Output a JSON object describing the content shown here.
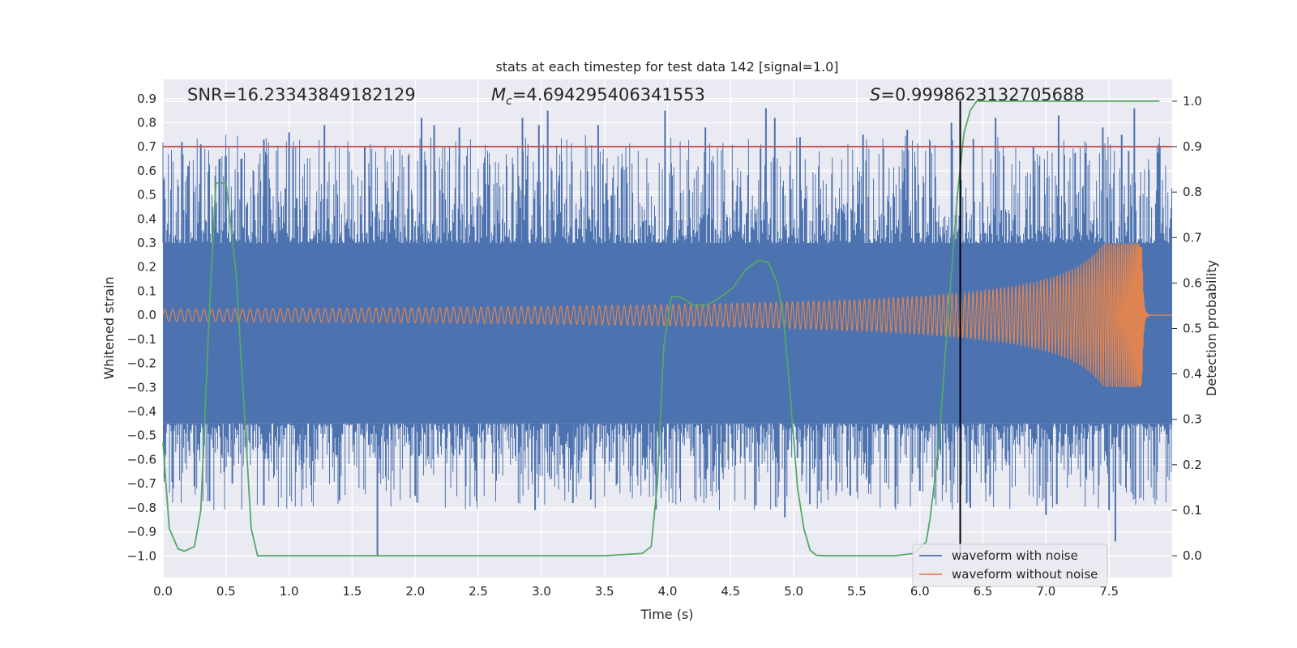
{
  "chart_data": {
    "type": "line",
    "title": "stats at each timestep for test data 142 [signal=1.0]",
    "xlabel": "Time (s)",
    "ylabel": "Whitened strain",
    "y2label": "Detection probability",
    "xlim": [
      0.0,
      8.0
    ],
    "ylim": [
      -1.09,
      0.98
    ],
    "y2lim": [
      -0.048,
      1.048
    ],
    "grid": true,
    "legend_position": "lower-right",
    "x_ticks": [
      "0.0",
      "0.5",
      "1.0",
      "1.5",
      "2.0",
      "2.5",
      "3.0",
      "3.5",
      "4.0",
      "4.5",
      "5.0",
      "5.5",
      "6.0",
      "6.5",
      "7.0",
      "7.5"
    ],
    "y_ticks": [
      "0.9",
      "0.8",
      "0.7",
      "0.6",
      "0.5",
      "0.4",
      "0.3",
      "0.2",
      "0.1",
      "0.0",
      "−0.1",
      "−0.2",
      "−0.3",
      "−0.4",
      "−0.5",
      "−0.6",
      "−0.7",
      "−0.8",
      "−0.9",
      "−1.0"
    ],
    "y2_ticks": [
      "1.0",
      "0.9",
      "0.8",
      "0.7",
      "0.6",
      "0.5",
      "0.4",
      "0.3",
      "0.2",
      "0.1",
      "0.0"
    ],
    "annotations": {
      "snr": "SNR=16.23343849182129",
      "mc_symbol": "M",
      "mc_sub": "c",
      "mc_value": "=4.694295406341553",
      "s_symbol": "S",
      "s_value": "=0.9998623132705688"
    },
    "threshold_probability": 0.9,
    "marker_time": 6.32,
    "series": [
      {
        "name": "waveform with noise",
        "color": "#4c72b0",
        "envelope_band": [
          -0.45,
          0.3
        ],
        "peaks_x": [
          0.15,
          0.2,
          0.3,
          0.45,
          0.5,
          0.62,
          0.8,
          1.0,
          1.28,
          1.6,
          2.05,
          2.15,
          2.35,
          2.85,
          2.98,
          3.05,
          3.45,
          3.98,
          4.3,
          4.78,
          4.85,
          5.05,
          5.55,
          5.9,
          6.25,
          6.6,
          6.9,
          7.1,
          7.45,
          7.6,
          7.7
        ],
        "peaks_y": [
          0.72,
          0.62,
          0.71,
          0.65,
          0.66,
          0.65,
          0.73,
          0.76,
          0.79,
          0.7,
          0.82,
          0.79,
          0.78,
          0.82,
          0.79,
          0.85,
          0.79,
          0.85,
          0.78,
          0.86,
          0.82,
          0.74,
          0.75,
          0.77,
          0.8,
          0.82,
          0.7,
          0.83,
          0.78,
          0.75,
          0.86
        ],
        "troughs_x": [
          0.08,
          0.25,
          0.4,
          0.55,
          0.8,
          1.1,
          1.4,
          1.7,
          2.0,
          2.4,
          2.95,
          3.25,
          3.6,
          4.1,
          4.3,
          4.7,
          4.93,
          5.2,
          5.6,
          6.0,
          6.4,
          7.0,
          7.5,
          7.55
        ],
        "troughs_y": [
          -0.72,
          -0.71,
          -0.55,
          -0.7,
          -0.79,
          -0.64,
          -0.77,
          -1.0,
          -0.75,
          -0.71,
          -0.81,
          -0.78,
          -0.7,
          -0.72,
          -0.68,
          -0.79,
          -0.84,
          -0.73,
          -0.7,
          -0.73,
          -0.8,
          -0.83,
          -0.81,
          -0.94
        ]
      },
      {
        "name": "waveform without noise",
        "color": "#dd8452",
        "chirp_start_amplitude": 0.025,
        "chirp_peak_amplitude": 0.3,
        "chirp_peak_time": 7.76,
        "chirp_start_freq_hz": 16
      },
      {
        "name": "",
        "color": "#55a868",
        "axis": "right",
        "x": [
          0.0,
          0.05,
          0.12,
          0.17,
          0.25,
          0.3,
          0.37,
          0.42,
          0.45,
          0.5,
          0.58,
          0.7,
          0.75,
          0.8,
          1.0,
          2.0,
          3.0,
          3.5,
          3.8,
          3.87,
          3.92,
          3.97,
          4.03,
          4.08,
          4.13,
          4.18,
          4.22,
          4.3,
          4.4,
          4.52,
          4.62,
          4.72,
          4.8,
          4.87,
          4.92,
          4.97,
          5.03,
          5.08,
          5.13,
          5.18,
          5.25,
          5.5,
          5.8,
          5.95,
          6.05,
          6.08,
          6.15,
          6.2,
          6.25,
          6.3,
          6.35,
          6.4,
          6.45,
          6.5,
          7.0,
          7.5,
          7.9
        ],
        "y": [
          0.25,
          0.06,
          0.015,
          0.01,
          0.02,
          0.1,
          0.55,
          0.82,
          0.82,
          0.82,
          0.62,
          0.06,
          0.0,
          0.0,
          0.0,
          0.0,
          0.0,
          0.0,
          0.005,
          0.02,
          0.16,
          0.46,
          0.57,
          0.57,
          0.565,
          0.555,
          0.55,
          0.55,
          0.565,
          0.59,
          0.63,
          0.65,
          0.645,
          0.6,
          0.52,
          0.36,
          0.15,
          0.06,
          0.012,
          0.001,
          0.0,
          0.0,
          0.0,
          0.005,
          0.03,
          0.08,
          0.24,
          0.44,
          0.62,
          0.8,
          0.93,
          0.98,
          1.0,
          1.0,
          1.0,
          1.0,
          1.0
        ]
      },
      {
        "name": "",
        "color": "#c44e52",
        "type": "hline",
        "axis": "right",
        "value": 0.9
      }
    ]
  }
}
